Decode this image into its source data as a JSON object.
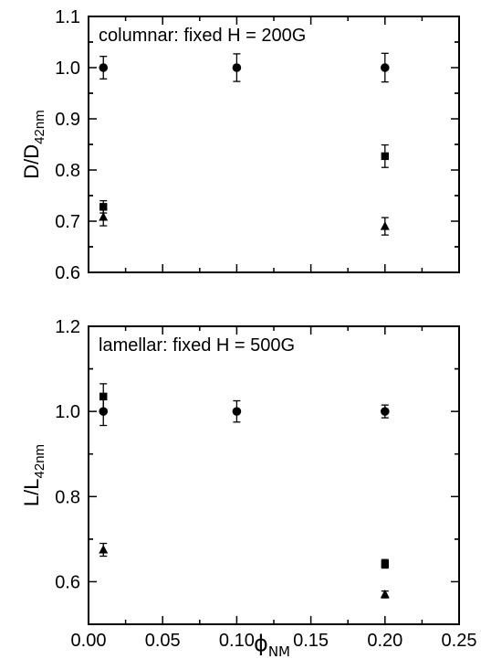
{
  "chart_data": [
    {
      "type": "scatter",
      "panel": "top",
      "annotation": "columnar: fixed H = 200G",
      "ylabel": {
        "main": "D/D",
        "sub": "42nm"
      },
      "xlim": [
        0,
        0.25
      ],
      "ylim": [
        0.6,
        1.1
      ],
      "xticks": [
        "0.00",
        "0.05",
        "0.10",
        "0.15",
        "0.20",
        "0.25"
      ],
      "yticks": [
        "0.6",
        "0.7",
        "0.8",
        "0.9",
        "1.0",
        "1.1"
      ],
      "series": [
        {
          "marker": "circle",
          "points": [
            {
              "x": 0.01,
              "y": 1.0,
              "err": 0.022
            },
            {
              "x": 0.1,
              "y": 1.0,
              "err": 0.027
            },
            {
              "x": 0.2,
              "y": 1.0,
              "err": 0.028
            }
          ]
        },
        {
          "marker": "square",
          "points": [
            {
              "x": 0.01,
              "y": 0.728,
              "err": 0.012
            },
            {
              "x": 0.2,
              "y": 0.827,
              "err": 0.022
            }
          ]
        },
        {
          "marker": "triangle",
          "points": [
            {
              "x": 0.01,
              "y": 0.708,
              "err": 0.017
            },
            {
              "x": 0.2,
              "y": 0.69,
              "err": 0.017
            }
          ]
        }
      ]
    },
    {
      "type": "scatter",
      "panel": "bottom",
      "annotation": "lamellar: fixed H = 500G",
      "ylabel": {
        "main": "L/L",
        "sub": "42nm"
      },
      "xlabel": {
        "main": "ϕ",
        "sub": "NM"
      },
      "xlim": [
        0,
        0.25
      ],
      "ylim": [
        0.5,
        1.2
      ],
      "xticks": [
        "0.00",
        "0.05",
        "0.10",
        "0.15",
        "0.20",
        "0.25"
      ],
      "yticks": [
        "0.6",
        "0.8",
        "1.0",
        "1.2"
      ],
      "yticks_values": [
        0.6,
        0.8,
        1.0,
        1.2
      ],
      "series": [
        {
          "marker": "circle",
          "points": [
            {
              "x": 0.01,
              "y": 1.0,
              "err": 0.033
            },
            {
              "x": 0.1,
              "y": 1.0,
              "err": 0.025
            },
            {
              "x": 0.2,
              "y": 1.0,
              "err": 0.015
            }
          ]
        },
        {
          "marker": "square",
          "points": [
            {
              "x": 0.01,
              "y": 1.035,
              "err": 0.03
            },
            {
              "x": 0.2,
              "y": 0.642,
              "err": 0.01
            }
          ]
        },
        {
          "marker": "triangle",
          "points": [
            {
              "x": 0.01,
              "y": 0.675,
              "err": 0.015
            },
            {
              "x": 0.2,
              "y": 0.57,
              "err": 0.008
            }
          ]
        }
      ]
    }
  ]
}
